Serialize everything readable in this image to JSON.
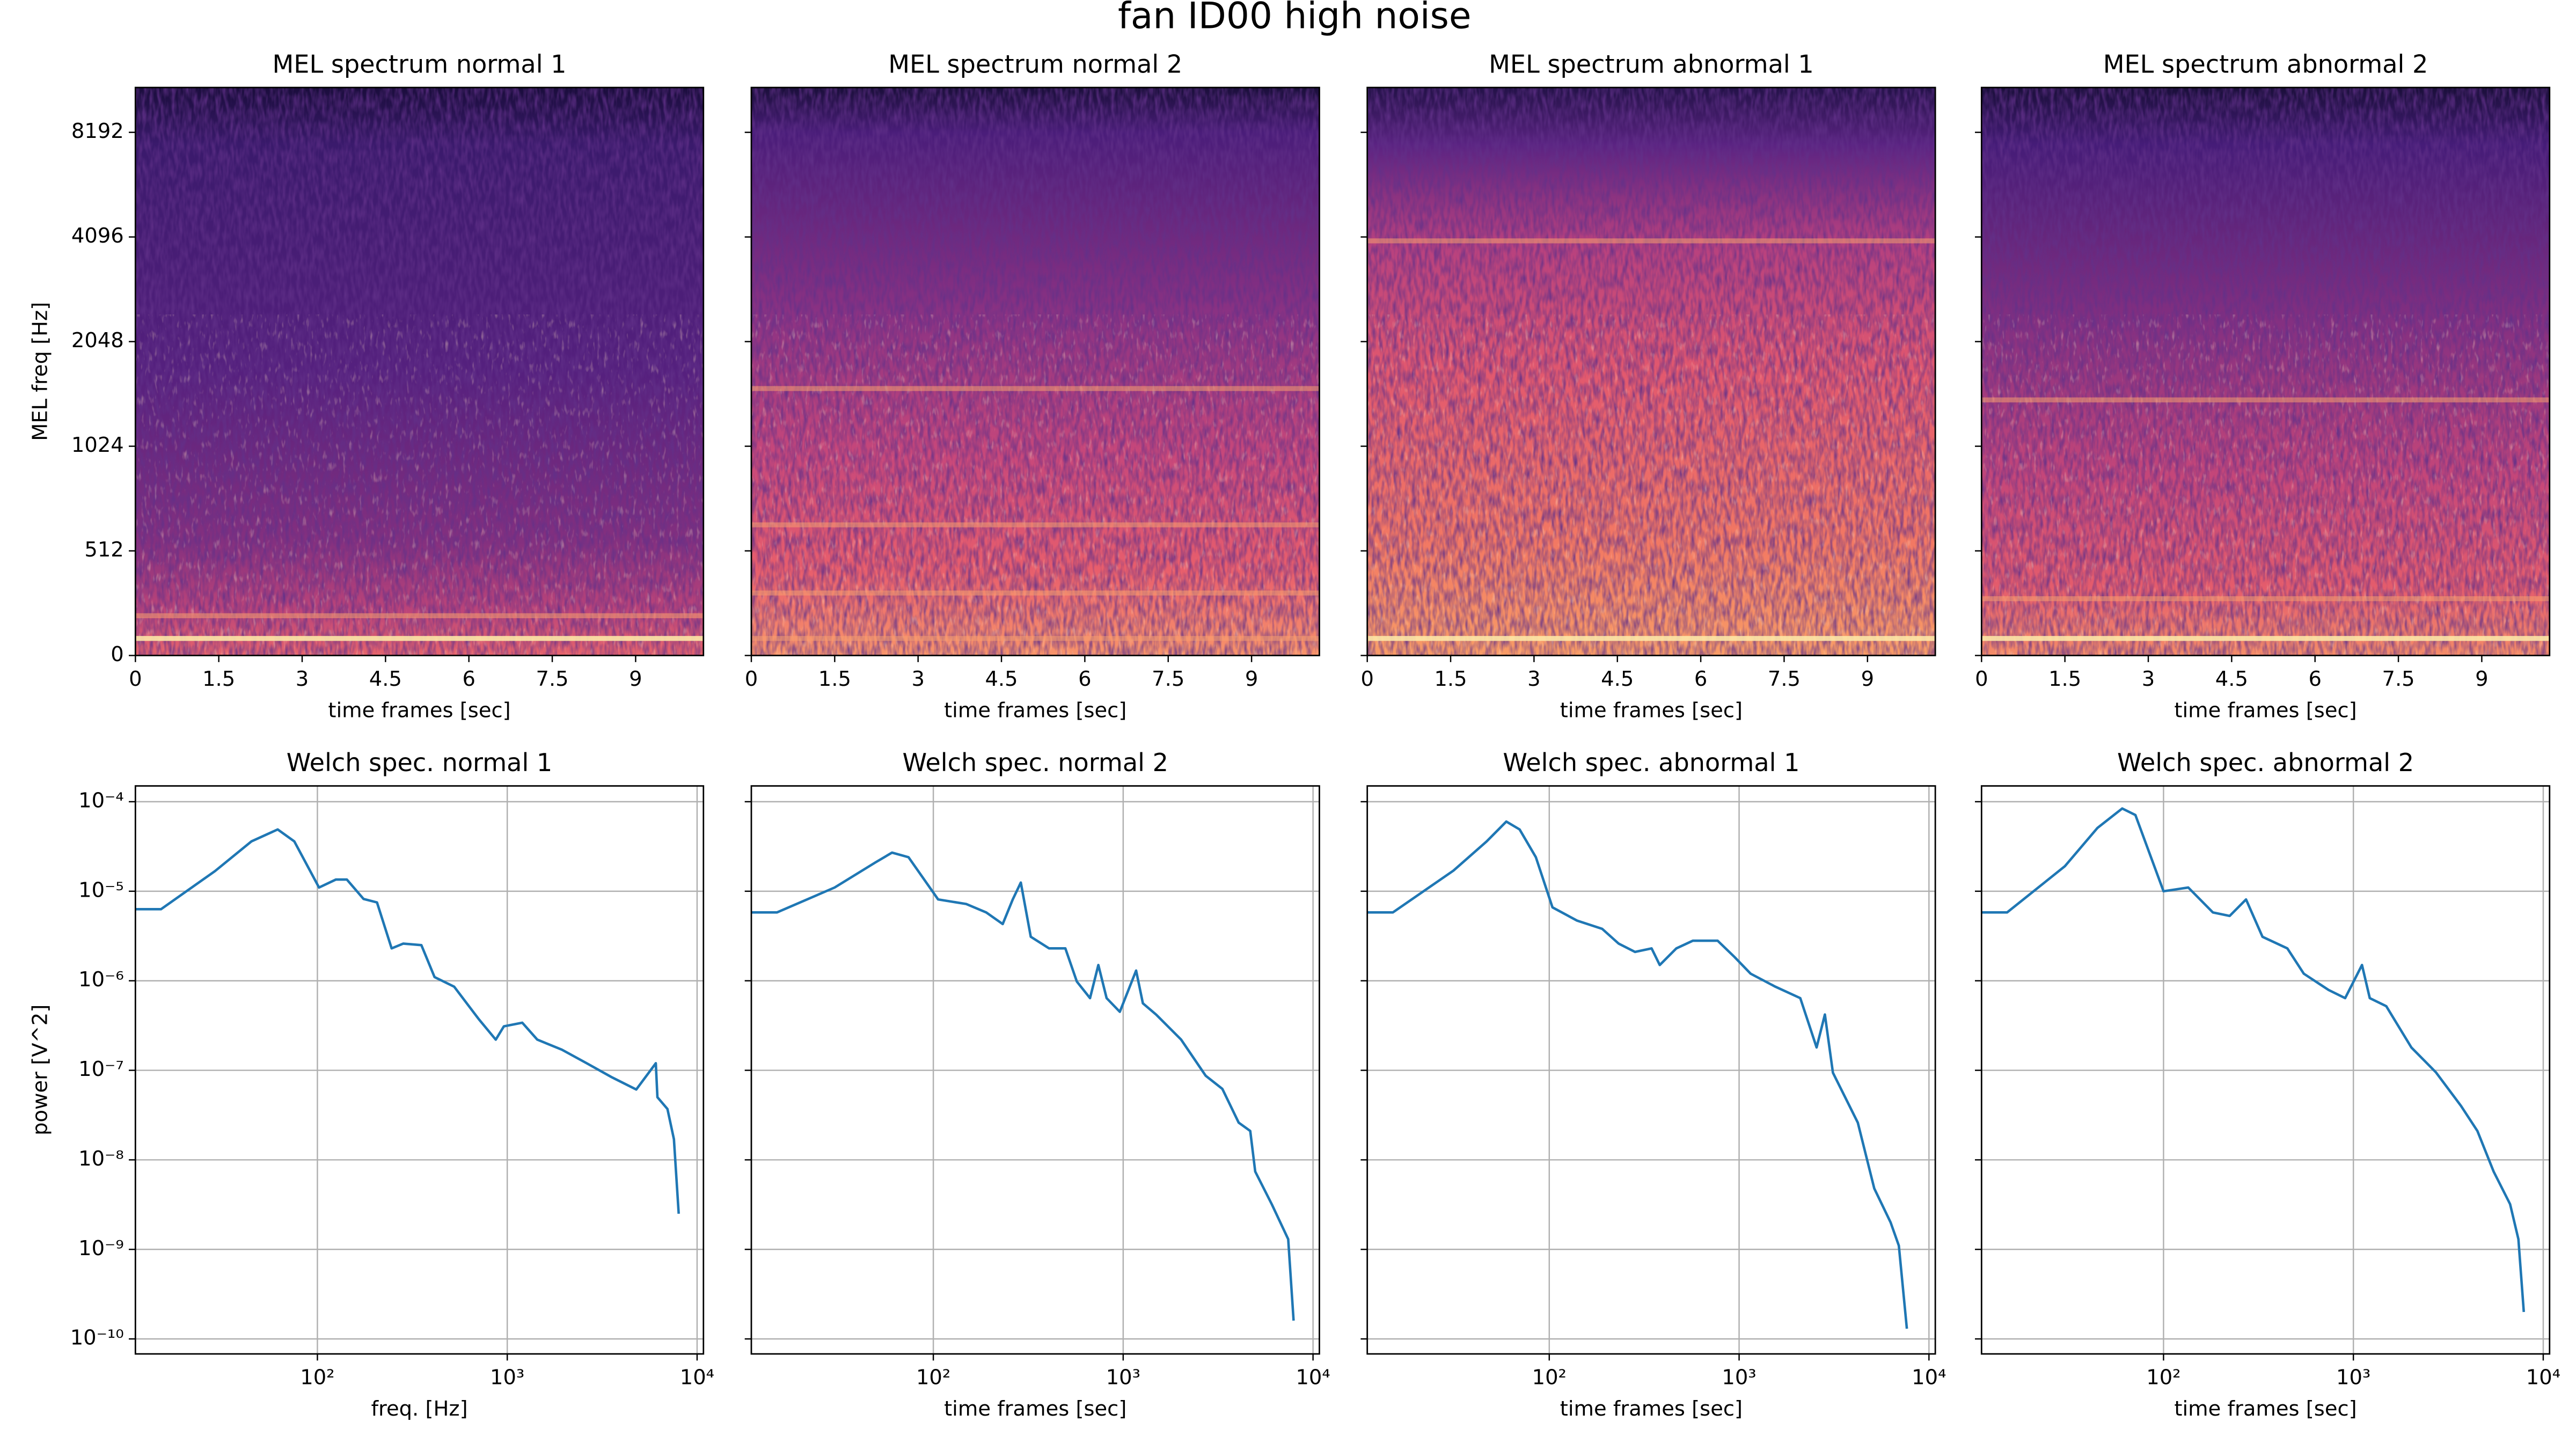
{
  "title": "fan ID00 high noise",
  "chart_data": [
    {
      "type": "spectrogram",
      "title": "MEL spectrum normal 1",
      "xlabel": "time frames [sec]",
      "ylabel": "MEL freq [Hz]",
      "xlim": [
        0,
        10.22
      ],
      "xticks": [
        0,
        1.5,
        3,
        4.5,
        6,
        7.5,
        9
      ],
      "yscale": "symlog",
      "linthresh": 512,
      "ylim": [
        0,
        11025
      ],
      "yticks": [
        0,
        512,
        1024,
        2048,
        4096,
        8192
      ]
    },
    {
      "type": "spectrogram",
      "title": "MEL spectrum normal 2",
      "xlabel": "time frames [sec]",
      "xlim": [
        0,
        10.22
      ],
      "xticks": [
        0,
        1.5,
        3,
        4.5,
        6,
        7.5,
        9
      ],
      "yscale": "symlog",
      "linthresh": 512,
      "ylim": [
        0,
        11025
      ],
      "yticks": [
        0,
        512,
        1024,
        2048,
        4096,
        8192
      ],
      "yticklabels": false
    },
    {
      "type": "spectrogram",
      "title": "MEL spectrum abnormal 1",
      "xlabel": "time frames [sec]",
      "xlim": [
        0,
        10.22
      ],
      "xticks": [
        0,
        1.5,
        3,
        4.5,
        6,
        7.5,
        9
      ],
      "yscale": "symlog",
      "linthresh": 512,
      "ylim": [
        0,
        11025
      ],
      "yticks": [
        0,
        512,
        1024,
        2048,
        4096,
        8192
      ],
      "yticklabels": false
    },
    {
      "type": "spectrogram",
      "title": "MEL spectrum abnormal 2",
      "xlabel": "time frames [sec]",
      "xlim": [
        0,
        10.22
      ],
      "xticks": [
        0,
        1.5,
        3,
        4.5,
        6,
        7.5,
        9
      ],
      "yscale": "symlog",
      "linthresh": 512,
      "ylim": [
        0,
        11025
      ],
      "yticks": [
        0,
        512,
        1024,
        2048,
        4096,
        8192
      ],
      "yticklabels": false
    },
    {
      "type": "line",
      "title": "Welch spec. normal 1",
      "xlabel": "freq. [Hz]",
      "ylabel": "power [V^2]",
      "xscale": "log",
      "yscale": "log",
      "xlim": [
        11,
        10800
      ],
      "ylim": [
        6.8e-11,
        0.00015
      ],
      "grid": true,
      "color": "#1f77b4",
      "xticks": [
        {
          "value": 100,
          "label": "10²"
        },
        {
          "value": 1000,
          "label": "10³"
        },
        {
          "value": 10000,
          "label": "10⁴"
        }
      ],
      "yticks": [
        {
          "value": 0.0001,
          "label": "10⁻⁴"
        },
        {
          "value": 1e-05,
          "label": "10⁻⁵"
        },
        {
          "value": 1e-06,
          "label": "10⁻⁶"
        },
        {
          "value": 1e-07,
          "label": "10⁻⁷"
        },
        {
          "value": 1e-08,
          "label": "10⁻⁸"
        },
        {
          "value": 1e-09,
          "label": "10⁻⁹"
        },
        {
          "value": 1e-10,
          "label": "10⁻¹⁰"
        }
      ],
      "x": [
        11,
        15,
        28.9,
        44.9,
        61.8,
        75.6,
        102,
        125,
        143,
        175,
        206,
        246,
        283,
        353,
        414,
        525,
        710,
        870,
        960,
        1200,
        1440,
        1940,
        2620,
        3540,
        4780,
        6060,
        6180,
        6980,
        7550,
        8000
      ],
      "values": [
        6.3e-06,
        6.3e-06,
        1.68e-05,
        3.6e-05,
        4.9e-05,
        3.6e-05,
        1.1e-05,
        1.35e-05,
        1.35e-05,
        8.2e-06,
        7.5e-06,
        2.3e-06,
        2.6e-06,
        2.5e-06,
        1.1e-06,
        8.6e-07,
        3.7e-07,
        2.2e-07,
        3.1e-07,
        3.4e-07,
        2.2e-07,
        1.7e-07,
        1.2e-07,
        8.4e-08,
        6.1e-08,
        1.2e-07,
        5e-08,
        3.7e-08,
        1.7e-08,
        2.5e-09
      ]
    },
    {
      "type": "line",
      "title": "Welch spec. normal 2",
      "xlabel": "time frames [sec]",
      "xscale": "log",
      "yscale": "log",
      "xlim": [
        11,
        10800
      ],
      "ylim": [
        6.8e-11,
        0.00015
      ],
      "grid": true,
      "color": "#1f77b4",
      "yticklabels": false,
      "xticks": [
        {
          "value": 100,
          "label": "10²"
        },
        {
          "value": 1000,
          "label": "10³"
        },
        {
          "value": 10000,
          "label": "10⁴"
        }
      ],
      "yticks": [
        0.0001,
        1e-05,
        1e-06,
        1e-07,
        1e-08,
        1e-09,
        1e-10
      ],
      "x": [
        11,
        15,
        30.2,
        49.6,
        60.6,
        74,
        106,
        149,
        190,
        232,
        262,
        289,
        326,
        407,
        496,
        570,
        669,
        740,
        818,
        960,
        1170,
        1270,
        1490,
        2020,
        2720,
        3330,
        4060,
        4670,
        4960,
        6060,
        7400,
        7900
      ],
      "values": [
        5.8e-06,
        5.8e-06,
        1.1e-05,
        2.1e-05,
        2.7e-05,
        2.4e-05,
        8.1e-06,
        7.2e-06,
        5.8e-06,
        4.3e-06,
        8.1e-06,
        1.25e-05,
        3.1e-06,
        2.3e-06,
        2.3e-06,
        9.8e-07,
        6.4e-07,
        1.5e-06,
        6.4e-07,
        4.5e-07,
        1.3e-06,
        5.6e-07,
        4.2e-07,
        2.2e-07,
        8.7e-08,
        6.2e-08,
        2.6e-08,
        2.1e-08,
        7.4e-09,
        3.2e-09,
        1.3e-09,
        1.6e-10
      ]
    },
    {
      "type": "line",
      "title": "Welch spec. abnormal 1",
      "xlabel": "time frames [sec]",
      "xscale": "log",
      "yscale": "log",
      "xlim": [
        11,
        10800
      ],
      "ylim": [
        6.8e-11,
        0.00015
      ],
      "grid": true,
      "color": "#1f77b4",
      "yticklabels": false,
      "xticks": [
        {
          "value": 100,
          "label": "10²"
        },
        {
          "value": 1000,
          "label": "10³"
        },
        {
          "value": 10000,
          "label": "10⁴"
        }
      ],
      "yticks": [
        0.0001,
        1e-05,
        1e-06,
        1e-07,
        1e-08,
        1e-09,
        1e-10
      ],
      "x": [
        11,
        15,
        31.3,
        46.8,
        59.4,
        69.8,
        85,
        104,
        140,
        190,
        232,
        283,
        346,
        382,
        467,
        570,
        771,
        944,
        1150,
        1550,
        2100,
        2560,
        2830,
        3120,
        4220,
        5150,
        6280,
        6940,
        7650
      ],
      "values": [
        5.8e-06,
        5.8e-06,
        1.7e-05,
        3.6e-05,
        6e-05,
        4.9e-05,
        2.4e-05,
        6.6e-06,
        4.7e-06,
        3.8e-06,
        2.6e-06,
        2.1e-06,
        2.3e-06,
        1.5e-06,
        2.3e-06,
        2.8e-06,
        2.8e-06,
        1.85e-06,
        1.2e-06,
        8.6e-07,
        6.4e-07,
        1.8e-07,
        4.2e-07,
        9.4e-08,
        2.6e-08,
        4.8e-09,
        2e-09,
        1.1e-09,
        1.3e-10
      ]
    },
    {
      "type": "line",
      "title": "Welch spec. abnormal 2",
      "xlabel": "time frames [sec]",
      "xscale": "log",
      "yscale": "log",
      "xlim": [
        11,
        10800
      ],
      "ylim": [
        6.8e-11,
        0.00015
      ],
      "grid": true,
      "color": "#1f77b4",
      "yticklabels": false,
      "xticks": [
        {
          "value": 100,
          "label": "10²"
        },
        {
          "value": 1000,
          "label": "10³"
        },
        {
          "value": 10000,
          "label": "10⁴"
        }
      ],
      "yticks": [
        0.0001,
        1e-05,
        1e-06,
        1e-07,
        1e-08,
        1e-09,
        1e-10
      ],
      "x": [
        11,
        15,
        30.2,
        44.9,
        60.6,
        71.1,
        100,
        135,
        182,
        223,
        272,
        332,
        449,
        548,
        740,
        905,
        1110,
        1220,
        1490,
        2020,
        2720,
        3690,
        4500,
        5480,
        6690,
        7400,
        7900
      ],
      "values": [
        5.8e-06,
        5.8e-06,
        1.9e-05,
        5.1e-05,
        8.4e-05,
        7.1e-05,
        1e-05,
        1.1e-05,
        5.8e-06,
        5.3e-06,
        8.1e-06,
        3.1e-06,
        2.3e-06,
        1.2e-06,
        7.9e-07,
        6.4e-07,
        1.5e-06,
        6.4e-07,
        5.2e-07,
        1.8e-07,
        9.5e-08,
        4e-08,
        2.1e-08,
        7.4e-09,
        3.2e-09,
        1.3e-09,
        2e-10
      ]
    }
  ]
}
